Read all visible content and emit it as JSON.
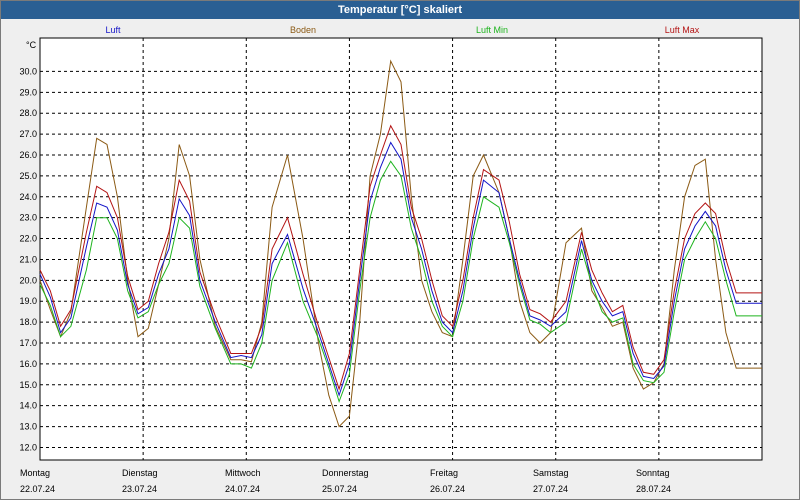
{
  "window": {
    "title": "Temperatur [°C] skaliert"
  },
  "chart_data": {
    "type": "line",
    "title": "Temperatur [°C] skaliert",
    "ylabel": "°C",
    "ylim": [
      11.4,
      31.6
    ],
    "yticks": [
      "12.0",
      "13.0",
      "14.0",
      "15.0",
      "16.0",
      "17.0",
      "18.0",
      "19.0",
      "20.0",
      "21.0",
      "22.0",
      "23.0",
      "24.0",
      "25.0",
      "26.0",
      "27.0",
      "28.0",
      "29.0",
      "30.0"
    ],
    "xlim": [
      0,
      7
    ],
    "days": [
      {
        "name": "Montag",
        "date": "22.07.24"
      },
      {
        "name": "Dienstag",
        "date": "23.07.24"
      },
      {
        "name": "Mittwoch",
        "date": "24.07.24"
      },
      {
        "name": "Donnerstag",
        "date": "25.07.24"
      },
      {
        "name": "Freitag",
        "date": "26.07.24"
      },
      {
        "name": "Samstag",
        "date": "27.07.24"
      },
      {
        "name": "Sonntag",
        "date": "28.07.24"
      }
    ],
    "grid": true,
    "series": [
      {
        "name": "Luft",
        "color": "#1414c8",
        "x": [
          0,
          0.1,
          0.2,
          0.3,
          0.45,
          0.55,
          0.65,
          0.75,
          0.85,
          0.95,
          1.05,
          1.15,
          1.25,
          1.35,
          1.45,
          1.55,
          1.7,
          1.85,
          1.95,
          2.05,
          2.15,
          2.25,
          2.4,
          2.55,
          2.7,
          2.8,
          2.9,
          3.0,
          3.1,
          3.2,
          3.3,
          3.4,
          3.5,
          3.6,
          3.7,
          3.8,
          3.9,
          4.0,
          4.1,
          4.2,
          4.3,
          4.45,
          4.55,
          4.65,
          4.75,
          4.85,
          4.95,
          5.1,
          5.25,
          5.35,
          5.45,
          5.55,
          5.65,
          5.75,
          5.85,
          5.95,
          6.05,
          6.15,
          6.25,
          6.35,
          6.45,
          6.55,
          6.65,
          6.75,
          6.85,
          6.95,
          7.0
        ],
        "values": [
          20.3,
          19.2,
          17.5,
          18.2,
          21.6,
          23.7,
          23.5,
          22.4,
          19.8,
          18.4,
          18.7,
          20.3,
          21.5,
          23.9,
          23.1,
          20.0,
          18.0,
          16.3,
          16.4,
          16.3,
          17.4,
          20.8,
          22.2,
          19.6,
          17.5,
          16.0,
          14.5,
          16.0,
          20.0,
          23.8,
          25.4,
          26.6,
          25.8,
          23.0,
          21.5,
          19.5,
          18.0,
          17.5,
          19.5,
          22.5,
          24.8,
          24.2,
          22.0,
          20.0,
          18.3,
          18.1,
          17.8,
          18.5,
          21.9,
          20.0,
          19.0,
          18.3,
          18.5,
          16.5,
          15.4,
          15.3,
          15.9,
          19.0,
          21.5,
          22.6,
          23.3,
          22.6,
          20.5,
          18.9,
          18.9,
          18.9,
          18.9
        ]
      },
      {
        "name": "Boden",
        "color": "#8b5a14",
        "x": [
          0,
          0.1,
          0.2,
          0.3,
          0.45,
          0.55,
          0.65,
          0.75,
          0.85,
          0.95,
          1.05,
          1.15,
          1.25,
          1.35,
          1.45,
          1.55,
          1.7,
          1.85,
          1.95,
          2.05,
          2.15,
          2.25,
          2.4,
          2.55,
          2.7,
          2.8,
          2.9,
          3.0,
          3.1,
          3.2,
          3.3,
          3.4,
          3.5,
          3.6,
          3.7,
          3.8,
          3.9,
          4.0,
          4.1,
          4.2,
          4.3,
          4.45,
          4.55,
          4.65,
          4.75,
          4.85,
          4.95,
          5.1,
          5.25,
          5.35,
          5.45,
          5.55,
          5.65,
          5.75,
          5.85,
          5.95,
          6.05,
          6.15,
          6.25,
          6.35,
          6.45,
          6.55,
          6.65,
          6.75,
          6.85,
          6.95,
          7.0
        ],
        "values": [
          20.0,
          18.6,
          17.3,
          18.5,
          23.5,
          26.8,
          26.5,
          24.0,
          20.0,
          17.3,
          17.7,
          19.8,
          22.0,
          26.5,
          25.0,
          21.0,
          17.8,
          16.2,
          16.2,
          16.1,
          18.0,
          23.5,
          26.0,
          22.0,
          17.0,
          14.5,
          13.0,
          13.5,
          18.0,
          25.0,
          27.0,
          30.5,
          29.5,
          24.0,
          20.0,
          18.5,
          17.5,
          17.3,
          21.0,
          25.0,
          26.0,
          24.2,
          22.0,
          19.0,
          17.5,
          17.0,
          17.5,
          21.8,
          22.5,
          19.5,
          18.7,
          17.8,
          18.0,
          15.8,
          14.8,
          15.1,
          16.0,
          20.5,
          24.0,
          25.5,
          25.8,
          21.0,
          17.5,
          15.8,
          15.8,
          15.8,
          15.8
        ]
      },
      {
        "name": "Luft Min",
        "color": "#1eb41e",
        "x": [
          0,
          0.1,
          0.2,
          0.3,
          0.45,
          0.55,
          0.65,
          0.75,
          0.85,
          0.95,
          1.05,
          1.15,
          1.25,
          1.35,
          1.45,
          1.55,
          1.7,
          1.85,
          1.95,
          2.05,
          2.15,
          2.25,
          2.4,
          2.55,
          2.7,
          2.8,
          2.9,
          3.0,
          3.1,
          3.2,
          3.3,
          3.4,
          3.5,
          3.6,
          3.7,
          3.8,
          3.9,
          4.0,
          4.1,
          4.2,
          4.3,
          4.45,
          4.55,
          4.65,
          4.75,
          4.85,
          4.95,
          5.1,
          5.25,
          5.35,
          5.45,
          5.55,
          5.65,
          5.75,
          5.85,
          5.95,
          6.05,
          6.15,
          6.25,
          6.35,
          6.45,
          6.55,
          6.65,
          6.75,
          6.85,
          6.95,
          7.0
        ],
        "values": [
          19.8,
          18.8,
          17.3,
          17.8,
          20.5,
          23.0,
          23.0,
          22.0,
          19.5,
          18.2,
          18.5,
          19.8,
          20.8,
          23.0,
          22.5,
          19.7,
          17.7,
          16.0,
          16.0,
          15.8,
          17.0,
          20.0,
          21.8,
          19.0,
          17.2,
          15.8,
          14.2,
          15.5,
          19.5,
          23.0,
          24.8,
          25.7,
          25.0,
          22.5,
          21.0,
          19.0,
          17.8,
          17.3,
          19.0,
          22.0,
          24.0,
          23.5,
          21.8,
          19.8,
          18.1,
          17.9,
          17.5,
          18.0,
          21.5,
          19.8,
          18.5,
          18.0,
          18.2,
          16.0,
          15.2,
          15.1,
          15.6,
          18.5,
          21.0,
          22.0,
          22.8,
          22.0,
          20.0,
          18.3,
          18.3,
          18.3,
          18.3
        ]
      },
      {
        "name": "Luft Max",
        "color": "#b41414",
        "x": [
          0,
          0.1,
          0.2,
          0.3,
          0.45,
          0.55,
          0.65,
          0.75,
          0.85,
          0.95,
          1.05,
          1.15,
          1.25,
          1.35,
          1.45,
          1.55,
          1.7,
          1.85,
          1.95,
          2.05,
          2.15,
          2.25,
          2.4,
          2.55,
          2.7,
          2.8,
          2.9,
          3.0,
          3.1,
          3.2,
          3.3,
          3.4,
          3.5,
          3.6,
          3.7,
          3.8,
          3.9,
          4.0,
          4.1,
          4.2,
          4.3,
          4.45,
          4.55,
          4.65,
          4.75,
          4.85,
          4.95,
          5.1,
          5.25,
          5.35,
          5.45,
          5.55,
          5.65,
          5.75,
          5.85,
          5.95,
          6.05,
          6.15,
          6.25,
          6.35,
          6.45,
          6.55,
          6.65,
          6.75,
          6.85,
          6.95,
          7.0
        ],
        "values": [
          20.5,
          19.5,
          17.8,
          18.6,
          22.3,
          24.5,
          24.2,
          23.0,
          20.2,
          18.6,
          19.0,
          20.8,
          22.3,
          24.8,
          23.8,
          20.4,
          18.3,
          16.5,
          16.5,
          16.5,
          17.8,
          21.5,
          23.0,
          20.3,
          17.8,
          16.3,
          14.8,
          16.5,
          20.5,
          24.5,
          26.0,
          27.4,
          26.5,
          23.5,
          22.0,
          20.0,
          18.3,
          17.8,
          20.0,
          23.0,
          25.3,
          24.8,
          22.8,
          20.3,
          18.6,
          18.4,
          18.0,
          19.0,
          22.3,
          20.5,
          19.4,
          18.5,
          18.8,
          16.8,
          15.6,
          15.5,
          16.2,
          19.5,
          22.0,
          23.2,
          23.7,
          23.2,
          21.0,
          19.4,
          19.4,
          19.4,
          19.4
        ]
      }
    ]
  }
}
